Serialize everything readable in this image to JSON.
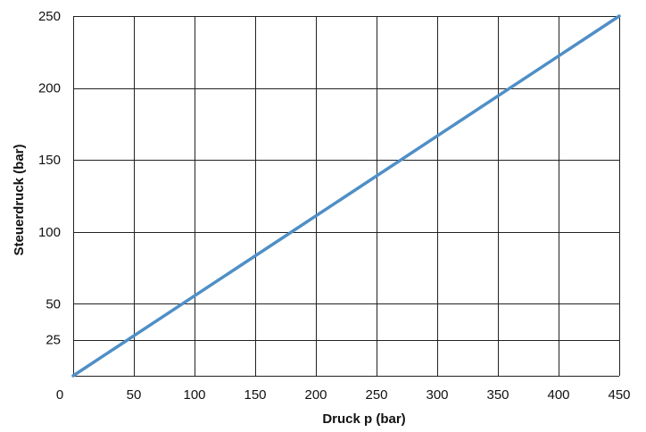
{
  "chart_data": {
    "type": "line",
    "xlabel": "Druck p  (bar)",
    "ylabel": "Steuerdruck (bar)",
    "xlim": [
      0,
      450
    ],
    "ylim": [
      0,
      250
    ],
    "x_ticks": [
      0,
      50,
      100,
      150,
      200,
      250,
      300,
      350,
      400,
      450
    ],
    "y_ticks": [
      25,
      50,
      100,
      150,
      200,
      250
    ],
    "y_gridlines": [
      0,
      25,
      50,
      100,
      150,
      200,
      250
    ],
    "grid": true,
    "series": [
      {
        "x": [
          0,
          450
        ],
        "y": [
          0,
          250
        ],
        "color": "#4f8fc6"
      }
    ],
    "grid_color": "#222222"
  }
}
